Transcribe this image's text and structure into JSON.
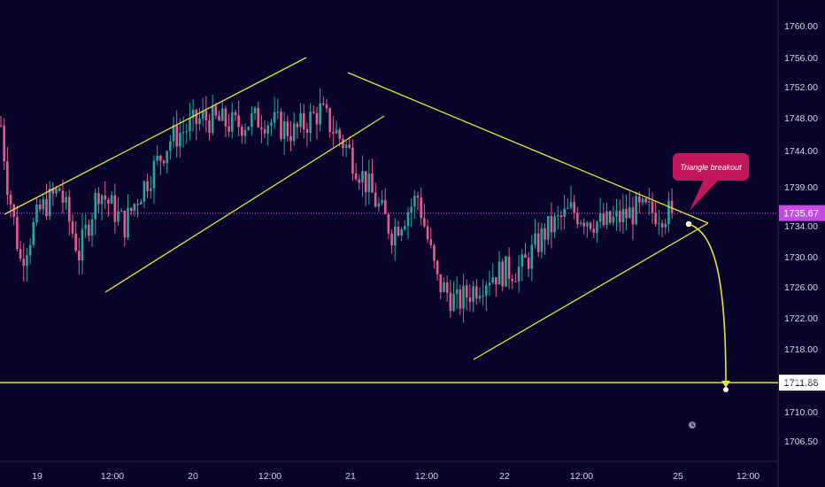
{
  "colors": {
    "background": "#09052a",
    "bull": "#26a69a",
    "bear": "#e25d8b",
    "pattern": "#e6e43a",
    "price_line": "#c24ce0",
    "target_line": "#e6e43a"
  },
  "chart_data": {
    "type": "candlestick",
    "y_axis": {
      "ticks": [
        "1760.00",
        "1756.00",
        "1752.00",
        "1748.00",
        "1744.00",
        "1739.00",
        "1734.00",
        "1730.00",
        "1726.00",
        "1722.00",
        "1718.00",
        "1714.00",
        "1710.00",
        "1706.50"
      ],
      "range": [
        1703.5,
        1762.5
      ]
    },
    "x_axis": {
      "ticks": [
        "19",
        "12:00",
        "20",
        "12:00",
        "21",
        "12:00",
        "22",
        "12:00",
        "25",
        "12:00"
      ]
    },
    "current_price": "1735.67",
    "target_price": "1711.88",
    "annotation": "Triangle breakout",
    "waypoints": [
      {
        "t": 0,
        "p": 1748
      },
      {
        "t": 2,
        "p": 1740
      },
      {
        "t": 6,
        "p": 1729
      },
      {
        "t": 12,
        "p": 1736
      },
      {
        "t": 18,
        "p": 1739
      },
      {
        "t": 24,
        "p": 1730
      },
      {
        "t": 30,
        "p": 1739
      },
      {
        "t": 38,
        "p": 1734
      },
      {
        "t": 42,
        "p": 1738
      },
      {
        "t": 52,
        "p": 1746
      },
      {
        "t": 62,
        "p": 1749
      },
      {
        "t": 72,
        "p": 1748
      },
      {
        "t": 80,
        "p": 1749
      },
      {
        "t": 90,
        "p": 1747
      },
      {
        "t": 98,
        "p": 1750
      },
      {
        "t": 106,
        "p": 1745
      },
      {
        "t": 112,
        "p": 1740
      },
      {
        "t": 120,
        "p": 1733
      },
      {
        "t": 128,
        "p": 1738
      },
      {
        "t": 134,
        "p": 1726
      },
      {
        "t": 140,
        "p": 1723
      },
      {
        "t": 150,
        "p": 1727
      },
      {
        "t": 160,
        "p": 1728
      },
      {
        "t": 167,
        "p": 1733
      },
      {
        "t": 175,
        "p": 1736
      },
      {
        "t": 185,
        "p": 1734
      },
      {
        "t": 195,
        "p": 1736
      },
      {
        "t": 206,
        "p": 1735.67
      }
    ]
  }
}
